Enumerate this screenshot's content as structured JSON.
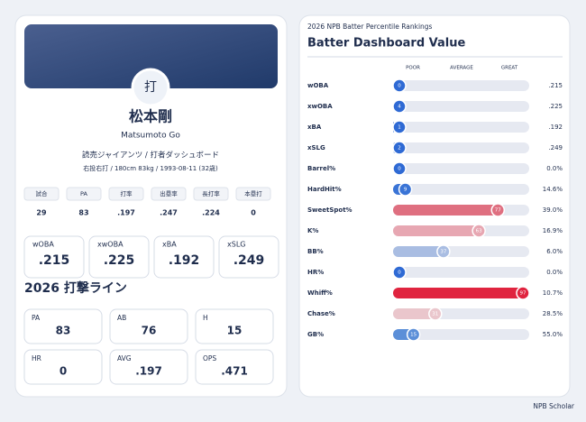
{
  "profile": {
    "avatar": "打",
    "name": "松本剛",
    "name_en": "Matsumoto Go",
    "team": "読売ジャイアンツ / 打者ダッシュボード",
    "bio": "右投右打 / 180cm 83kg / 1993-08-11 (32歳)"
  },
  "summary": {
    "headers": [
      "試合",
      "PA",
      "打率",
      "出塁率",
      "長打率",
      "本塁打"
    ],
    "values": [
      "29",
      "83",
      ".197",
      ".247",
      ".224",
      "0"
    ]
  },
  "key_stats": [
    {
      "label": "wOBA",
      "value": ".215"
    },
    {
      "label": "xwOBA",
      "value": ".225"
    },
    {
      "label": "xBA",
      "value": ".192"
    },
    {
      "label": "xSLG",
      "value": ".249"
    }
  ],
  "line_title": "2026 打撃ライン",
  "line_stats": [
    {
      "label": "PA",
      "value": "83"
    },
    {
      "label": "AB",
      "value": "76"
    },
    {
      "label": "H",
      "value": "15"
    },
    {
      "label": "HR",
      "value": "0"
    },
    {
      "label": "AVG",
      "value": ".197"
    },
    {
      "label": "OPS",
      "value": ".471"
    }
  ],
  "rankings": {
    "subtitle": "2026 NPB Batter Percentile Rankings",
    "title": "Batter Dashboard Value",
    "scale": [
      "POOR",
      "AVERAGE",
      "GREAT"
    ],
    "rows": [
      {
        "label": "wOBA",
        "percentile": 0,
        "value": ".215",
        "color": "#2f6ad4"
      },
      {
        "label": "xwOBA",
        "percentile": 4,
        "value": ".225",
        "color": "#2f6ad4"
      },
      {
        "label": "xBA",
        "percentile": 1,
        "value": ".192",
        "color": "#2f6ad4"
      },
      {
        "label": "xSLG",
        "percentile": 2,
        "value": ".249",
        "color": "#2f6ad4"
      },
      {
        "label": "Barrel%",
        "percentile": 0,
        "value": "0.0%",
        "color": "#2f6ad4"
      },
      {
        "label": "HardHit%",
        "percentile": 9,
        "value": "14.6%",
        "color": "#3a74d6"
      },
      {
        "label": "SweetSpot%",
        "percentile": 77,
        "value": "39.0%",
        "color": "#df6f80"
      },
      {
        "label": "K%",
        "percentile": 63,
        "value": "16.9%",
        "color": "#e7a7b2"
      },
      {
        "label": "BB%",
        "percentile": 37,
        "value": "6.0%",
        "color": "#a9bde2"
      },
      {
        "label": "HR%",
        "percentile": 0,
        "value": "0.0%",
        "color": "#2f6ad4"
      },
      {
        "label": "Whiff%",
        "percentile": 97,
        "value": "10.7%",
        "color": "#e0243f"
      },
      {
        "label": "Chase%",
        "percentile": 31,
        "value": "28.5%",
        "color": "#eac6cc"
      },
      {
        "label": "GB%",
        "percentile": 15,
        "value": "55.0%",
        "color": "#5b8fd8"
      }
    ]
  },
  "footer": "NPB Scholar"
}
